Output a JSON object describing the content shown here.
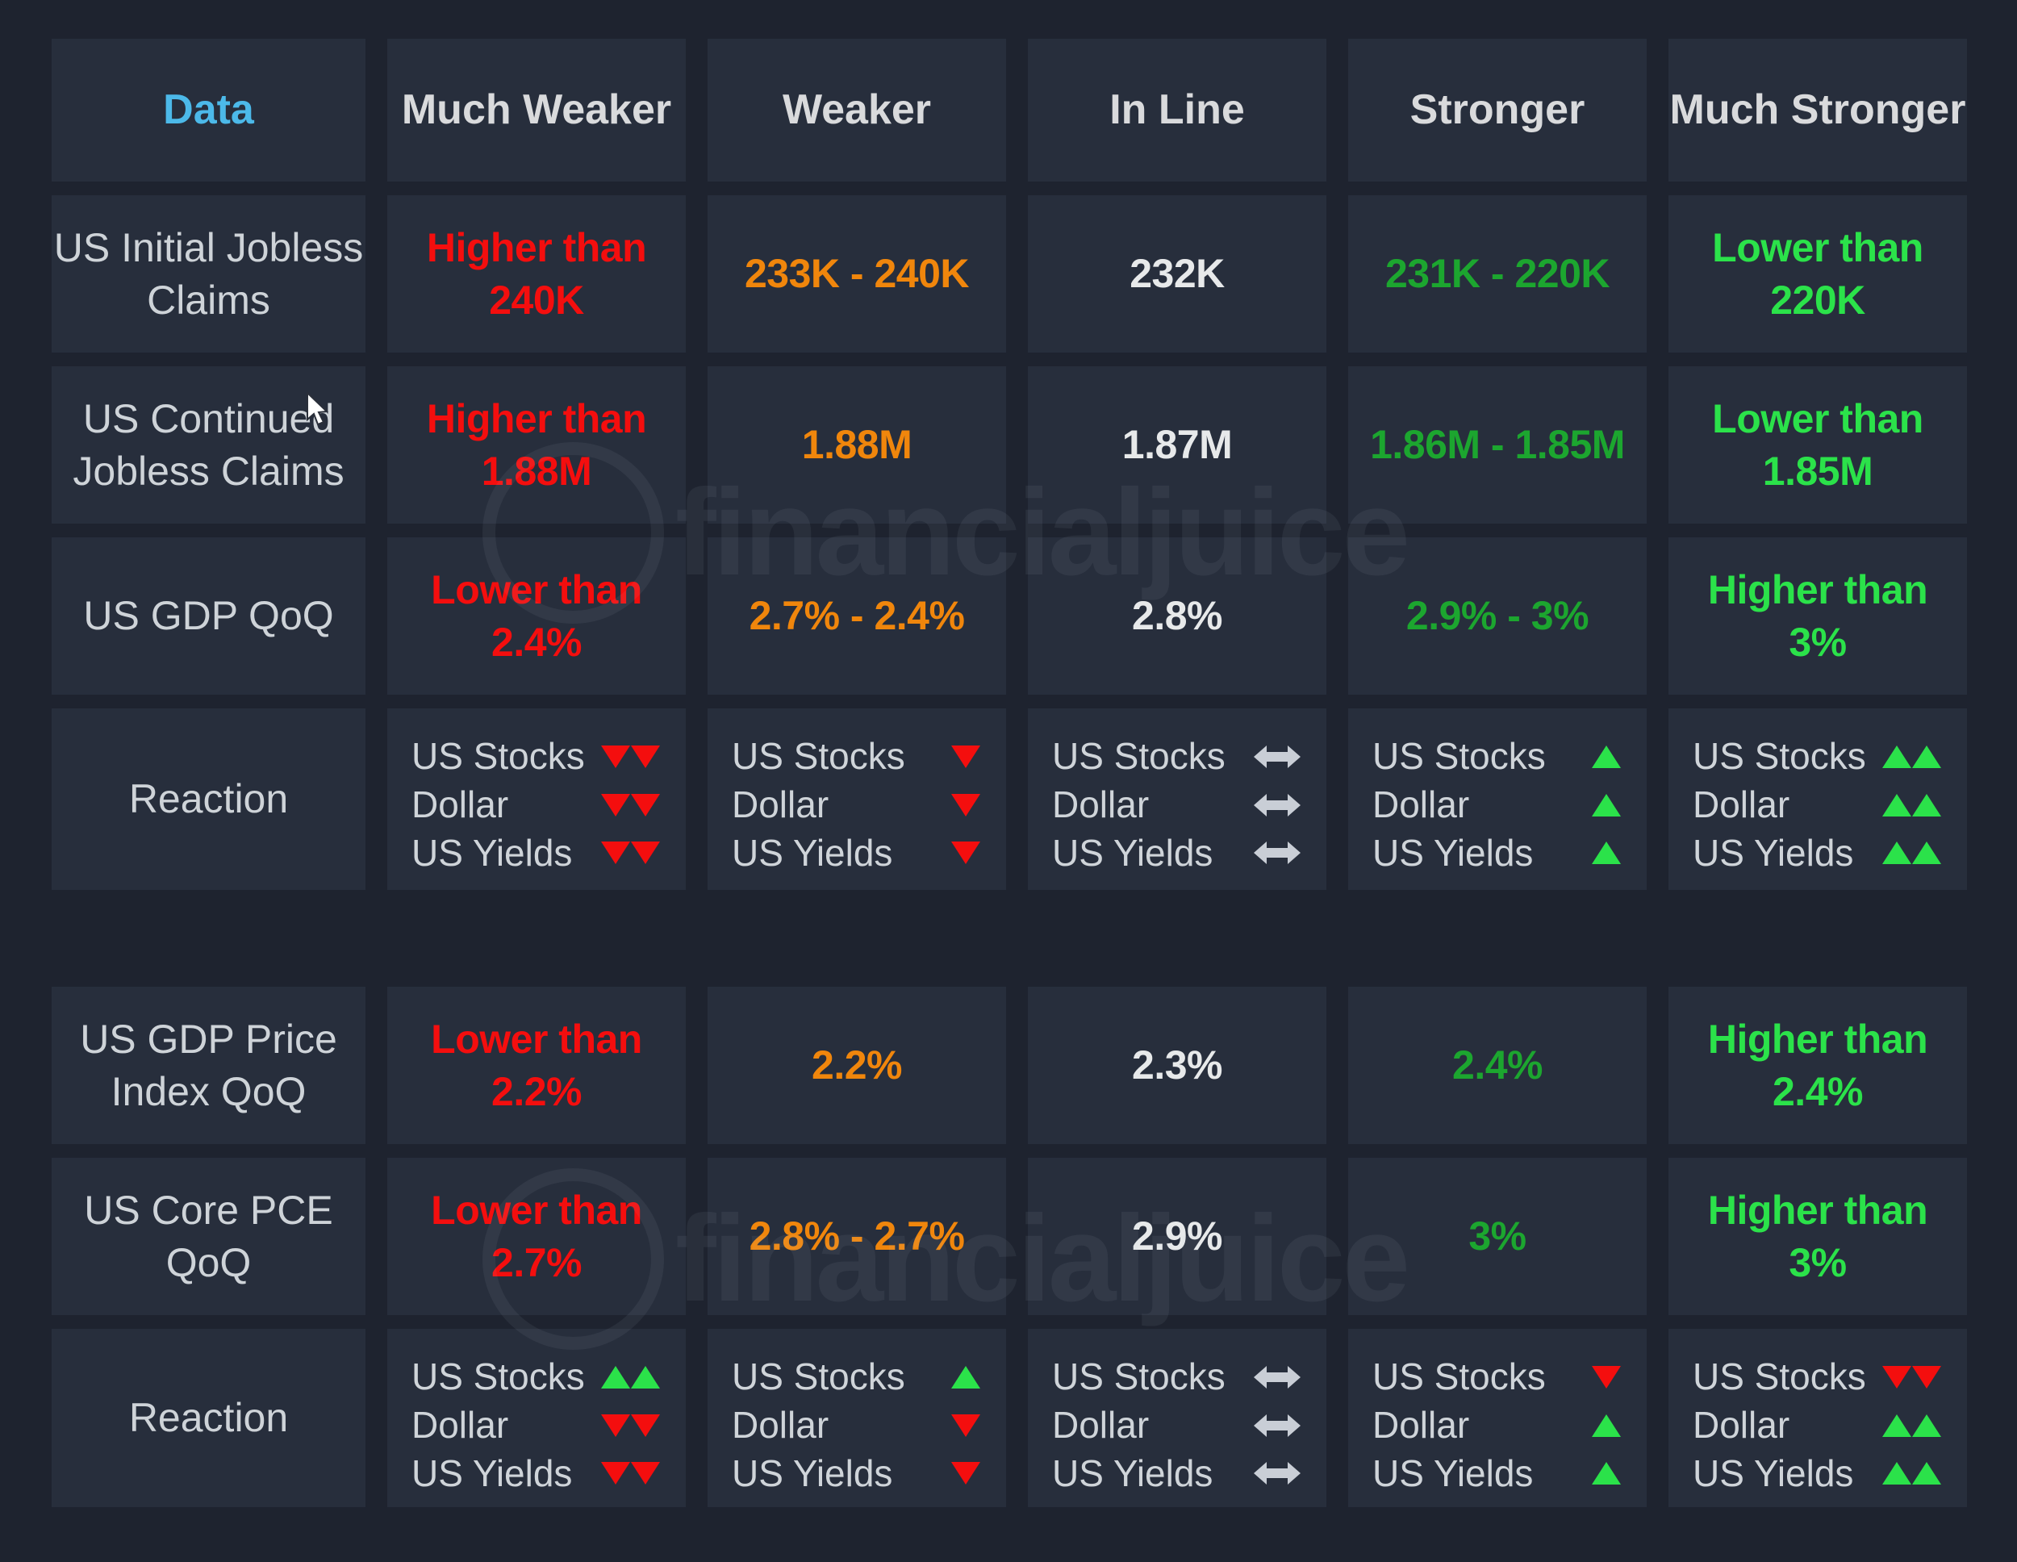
{
  "colors": {
    "background": "#1e232f",
    "cell": "#272e3c",
    "headerAccent": "#4cb9e9",
    "red": "#f40e0e",
    "orange": "#f0860c",
    "white": "#e7e9ea",
    "green": "#1ca62f",
    "greenBright": "#2be24a",
    "arrowGray": "#c9ced6"
  },
  "watermark": {
    "text": "financialjuice"
  },
  "table": {
    "headers": [
      {
        "label": "Data",
        "accent": true
      },
      {
        "label": "Much Weaker",
        "accent": false
      },
      {
        "label": "Weaker",
        "accent": false
      },
      {
        "label": "In Line",
        "accent": false
      },
      {
        "label": "Stronger",
        "accent": false
      },
      {
        "label": "Much Stronger",
        "accent": false
      }
    ],
    "reaction_assets": [
      "US Stocks",
      "Dollar",
      "US Yields"
    ],
    "groups": [
      {
        "rows": [
          {
            "label": "US Initial Jobless Claims",
            "cells": [
              {
                "text": "Higher than\n240K",
                "tone": "red"
              },
              {
                "text": "233K - 240K",
                "tone": "orange"
              },
              {
                "text": "232K",
                "tone": "white"
              },
              {
                "text": "231K - 220K",
                "tone": "green"
              },
              {
                "text": "Lower than\n220K",
                "tone": "greenBright"
              }
            ]
          },
          {
            "label": "US Continued Jobless Claims",
            "cells": [
              {
                "text": "Higher than\n1.88M",
                "tone": "red"
              },
              {
                "text": "1.88M",
                "tone": "orange"
              },
              {
                "text": "1.87M",
                "tone": "white"
              },
              {
                "text": "1.86M - 1.85M",
                "tone": "green"
              },
              {
                "text": "Lower than\n1.85M",
                "tone": "greenBright"
              }
            ]
          },
          {
            "label": "US GDP QoQ",
            "cells": [
              {
                "text": "Lower than\n2.4%",
                "tone": "red"
              },
              {
                "text": "2.7% - 2.4%",
                "tone": "orange"
              },
              {
                "text": "2.8%",
                "tone": "white"
              },
              {
                "text": "2.9% - 3%",
                "tone": "green"
              },
              {
                "text": "Higher than\n3%",
                "tone": "greenBright"
              }
            ]
          }
        ],
        "reaction": {
          "label": "Reaction",
          "columns": [
            {
              "arrows": [
                "down2",
                "down2",
                "down2"
              ]
            },
            {
              "arrows": [
                "down",
                "down",
                "down"
              ]
            },
            {
              "arrows": [
                "flat",
                "flat",
                "flat"
              ]
            },
            {
              "arrows": [
                "up",
                "up",
                "up"
              ]
            },
            {
              "arrows": [
                "up2",
                "up2",
                "up2"
              ]
            }
          ]
        }
      },
      {
        "rows": [
          {
            "label": "US GDP Price Index QoQ",
            "cells": [
              {
                "text": "Lower than\n2.2%",
                "tone": "red"
              },
              {
                "text": "2.2%",
                "tone": "orange"
              },
              {
                "text": "2.3%",
                "tone": "white"
              },
              {
                "text": "2.4%",
                "tone": "green"
              },
              {
                "text": "Higher than\n2.4%",
                "tone": "greenBright"
              }
            ]
          },
          {
            "label": "US Core PCE QoQ",
            "cells": [
              {
                "text": "Lower than\n2.7%",
                "tone": "red"
              },
              {
                "text": "2.8% - 2.7%",
                "tone": "orange"
              },
              {
                "text": "2.9%",
                "tone": "white"
              },
              {
                "text": "3%",
                "tone": "green"
              },
              {
                "text": "Higher than\n3%",
                "tone": "greenBright"
              }
            ]
          }
        ],
        "reaction": {
          "label": "Reaction",
          "columns": [
            {
              "arrows": [
                "up2",
                "down2",
                "down2"
              ]
            },
            {
              "arrows": [
                "up",
                "down",
                "down"
              ]
            },
            {
              "arrows": [
                "flat",
                "flat",
                "flat"
              ]
            },
            {
              "arrows": [
                "down",
                "up",
                "up"
              ]
            },
            {
              "arrows": [
                "down2",
                "up2",
                "up2"
              ]
            }
          ]
        }
      }
    ]
  }
}
